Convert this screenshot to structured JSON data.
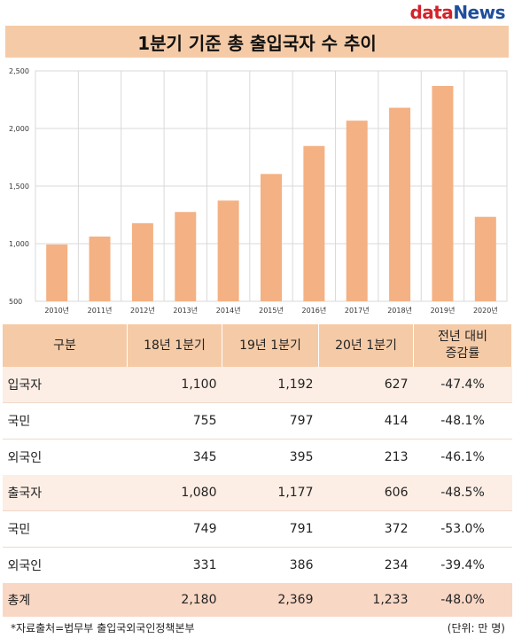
{
  "logo": {
    "part1": "data",
    "part2": "News"
  },
  "title": "1분기 기준 총 출입국자 수 추이",
  "chart_data": {
    "type": "bar",
    "categories": [
      "2010년",
      "2011년",
      "2012년",
      "2013년",
      "2014년",
      "2015년",
      "2016년",
      "2017년",
      "2018년",
      "2019년",
      "2020년"
    ],
    "values": [
      993,
      1062,
      1178,
      1275,
      1374,
      1605,
      1848,
      2068,
      2180,
      2369,
      1233
    ],
    "ylim": [
      500,
      2500
    ],
    "yticks": [
      "2,500",
      "2,000",
      "1,500",
      "1,000",
      "500"
    ],
    "ytick_values": [
      2500,
      2000,
      1500,
      1000,
      500
    ],
    "grid": true,
    "bar_color": "#f4b183"
  },
  "table": {
    "headers": [
      "구분",
      "18년 1분기",
      "19년 1분기",
      "20년 1분기",
      "전년 대비 증감률"
    ],
    "rows": [
      {
        "label": "입국자",
        "kind": "group",
        "values": [
          "1,100",
          "1,192",
          "627",
          "-47.4%"
        ]
      },
      {
        "label": "국민",
        "kind": "sub",
        "values": [
          "755",
          "797",
          "414",
          "-48.1%"
        ]
      },
      {
        "label": "외국인",
        "kind": "sub",
        "values": [
          "345",
          "395",
          "213",
          "-46.1%"
        ]
      },
      {
        "label": "출국자",
        "kind": "group",
        "values": [
          "1,080",
          "1,177",
          "606",
          "-48.5%"
        ]
      },
      {
        "label": "국민",
        "kind": "sub",
        "values": [
          "749",
          "791",
          "372",
          "-53.0%"
        ]
      },
      {
        "label": "외국인",
        "kind": "sub",
        "values": [
          "331",
          "386",
          "234",
          "-39.4%"
        ]
      },
      {
        "label": "총계",
        "kind": "total",
        "values": [
          "2,180",
          "2,369",
          "1,233",
          "-48.0%"
        ]
      }
    ]
  },
  "footer": {
    "source": "*자료출처=법무부 출입국외국인정책본부",
    "unit": "(단위: 만 명)"
  }
}
